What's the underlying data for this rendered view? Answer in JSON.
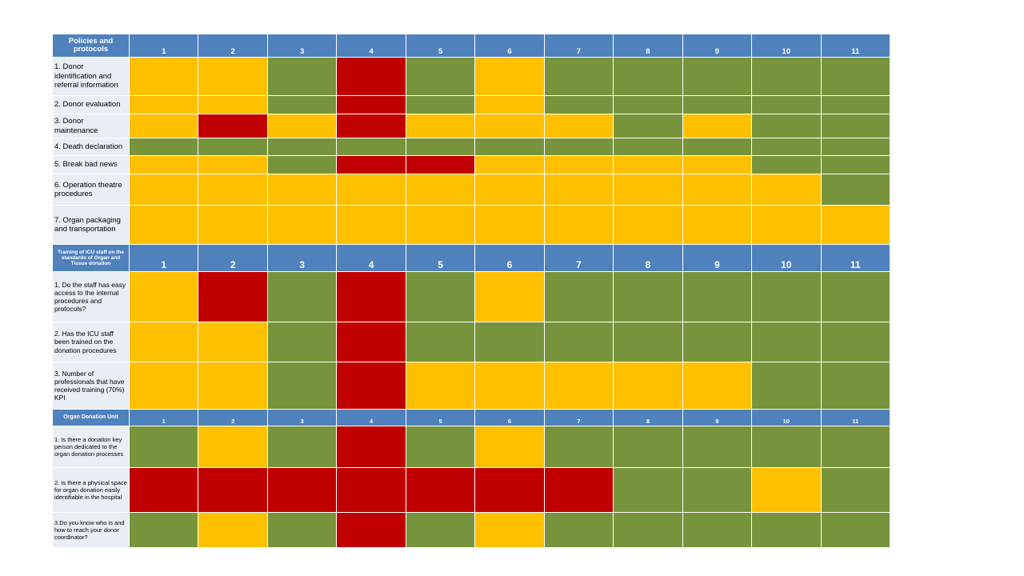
{
  "colors": {
    "header": "#4f81bd",
    "green": "#77933c",
    "yellow": "#ffc000",
    "red": "#c00000",
    "label_bg": "#e9edf4"
  },
  "columns": [
    "1",
    "2",
    "3",
    "4",
    "5",
    "6",
    "7",
    "8",
    "9",
    "10",
    "11"
  ],
  "sections": [
    {
      "title": "Policies and protocols",
      "rows": [
        {
          "label": "1. Donor identification and referral information",
          "cells": [
            "y",
            "y",
            "g",
            "r",
            "g",
            "y",
            "g",
            "g",
            "g",
            "g",
            "g"
          ]
        },
        {
          "label": "2. Donor evaluation",
          "cells": [
            "y",
            "y",
            "g",
            "r",
            "g",
            "y",
            "g",
            "g",
            "g",
            "g",
            "g"
          ]
        },
        {
          "label": "3. Donor maintenance",
          "cells": [
            "y",
            "r",
            "y",
            "r",
            "y",
            "y",
            "y",
            "g",
            "y",
            "g",
            "g"
          ]
        },
        {
          "label": "4. Death declaration",
          "cells": [
            "g",
            "g",
            "g",
            "g",
            "g",
            "g",
            "g",
            "g",
            "g",
            "g",
            "g"
          ]
        },
        {
          "label": "5. Break bad news",
          "cells": [
            "y",
            "y",
            "g",
            "r",
            "r",
            "y",
            "y",
            "y",
            "y",
            "g",
            "g"
          ]
        },
        {
          "label": "6. Operation theatre procedures",
          "cells": [
            "y",
            "y",
            "y",
            "y",
            "y",
            "y",
            "y",
            "y",
            "y",
            "y",
            "g"
          ]
        },
        {
          "label": "7. Organ packaging and transportation",
          "cells": [
            "y",
            "y",
            "y",
            "y",
            "y",
            "y",
            "y",
            "y",
            "y",
            "y",
            "y"
          ]
        }
      ]
    },
    {
      "title": "Training of ICU staff on the standards of Organ and Tissue donation",
      "rows": [
        {
          "label": "1, Do the staff has easy access to the internal procedures and protocols?",
          "cells": [
            "y",
            "r",
            "g",
            "r",
            "g",
            "y",
            "g",
            "g",
            "g",
            "g",
            "g"
          ]
        },
        {
          "label": "2. Has the ICU staff been trained on the donation procedures",
          "cells": [
            "y",
            "y",
            "g",
            "r",
            "g",
            "g",
            "g",
            "g",
            "g",
            "g",
            "g"
          ]
        },
        {
          "label": "3. Number of professionals that have received training (70%) KPI",
          "cells": [
            "y",
            "y",
            "g",
            "r",
            "y",
            "y",
            "y",
            "y",
            "y",
            "g",
            "g"
          ]
        }
      ]
    },
    {
      "title": "Organ Donation Unit",
      "rows": [
        {
          "label": "1. Is there a donation key person dedicated to the organ donation processes",
          "cells": [
            "g",
            "y",
            "g",
            "r",
            "g",
            "y",
            "g",
            "g",
            "g",
            "g",
            "g"
          ]
        },
        {
          "label": "2. Is there a physical space for organ donation easily identifiable in the hospital",
          "cells": [
            "r",
            "r",
            "r",
            "r",
            "r",
            "r",
            "r",
            "g",
            "g",
            "y",
            "g"
          ]
        },
        {
          "label": "3.Do you know who is and how to reach your donor coordinator?",
          "cells": [
            "g",
            "y",
            "g",
            "r",
            "g",
            "y",
            "g",
            "g",
            "g",
            "g",
            "g"
          ]
        }
      ]
    }
  ]
}
